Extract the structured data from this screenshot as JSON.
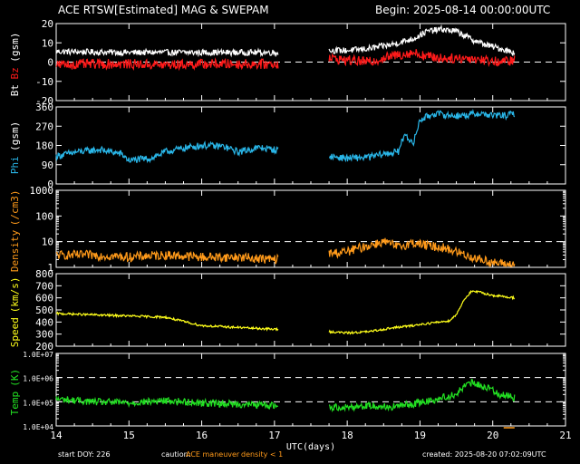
{
  "header": {
    "title": "ACE RTSW[Estimated] MAG & SWEPAM",
    "begin": "Begin: 2025-08-14 00:00:00UTC"
  },
  "footer": {
    "start_doy": "start DOY: 226",
    "caution_label": "caution:",
    "caution_maneuver": "ACE maneuver",
    "caution_density": "density < 1",
    "created": "created: 2025-08-20 07:02:09UTC"
  },
  "colors": {
    "background": "#000000",
    "frame": "#ffffff",
    "bt": "#ffffff",
    "bz": "#ff1a1a",
    "phi": "#29b6e8",
    "density": "#ff9a1a",
    "speed": "#ffff1a",
    "temp": "#22e022",
    "maneuver": "#ff9a1a"
  },
  "chart_data": {
    "type": "line",
    "title": "ACE RTSW[Estimated] MAG & SWEPAM",
    "xlabel": "UTC(days)",
    "xlim": [
      14,
      21
    ],
    "x_ticks": [
      "14",
      "15",
      "16",
      "17",
      "18",
      "19",
      "20",
      "21"
    ],
    "data_gap": [
      17.05,
      17.75
    ],
    "panels": [
      {
        "id": "mag",
        "ylabel_parts": [
          "Bt",
          "Bz",
          "(gsm)"
        ],
        "ylim": [
          -20,
          20
        ],
        "yticks": [
          "20",
          "10",
          "0",
          "-10",
          "-20"
        ],
        "scale": "linear",
        "dashed_lines": [
          0
        ],
        "series": [
          {
            "name": "Bt",
            "x": [
              14.0,
              14.5,
              15.0,
              15.5,
              16.0,
              16.5,
              17.0,
              17.75,
              18.0,
              18.3,
              18.6,
              18.9,
              19.1,
              19.3,
              19.5,
              19.7,
              19.9,
              20.1,
              20.3
            ],
            "values": [
              5.5,
              5.2,
              5.0,
              5.0,
              5.0,
              5.0,
              5.0,
              6,
              6,
              7,
              9,
              12,
              16,
              17,
              16,
              12,
              9,
              7,
              5
            ]
          },
          {
            "name": "Bz",
            "x": [
              14.0,
              14.5,
              15.0,
              15.5,
              16.0,
              16.5,
              17.0,
              17.75,
              18.0,
              18.3,
              18.6,
              18.9,
              19.1,
              19.3,
              19.5,
              19.7,
              19.9,
              20.1,
              20.3
            ],
            "values": [
              -1.5,
              -1.0,
              -1.0,
              -1.5,
              -1.0,
              -1.0,
              -1.0,
              2,
              1,
              0,
              3,
              5,
              3,
              2,
              2,
              2,
              1,
              0,
              1
            ]
          }
        ]
      },
      {
        "id": "phi",
        "ylabel_parts": [
          "Phi",
          "(gsm)"
        ],
        "ylim": [
          0,
          360
        ],
        "yticks": [
          "360",
          "270",
          "180",
          "90",
          "0"
        ],
        "scale": "linear",
        "dashed_lines": [],
        "series": [
          {
            "name": "Phi",
            "x": [
              14.0,
              14.3,
              14.6,
              14.9,
              15.0,
              15.3,
              15.5,
              15.8,
              16.0,
              16.3,
              16.5,
              16.8,
              17.0,
              17.75,
              18.0,
              18.3,
              18.5,
              18.7,
              18.8,
              18.9,
              19.0,
              19.2,
              19.4,
              19.6,
              19.8,
              20.0,
              20.2,
              20.3
            ],
            "values": [
              130,
              150,
              160,
              140,
              110,
              120,
              150,
              170,
              180,
              175,
              150,
              170,
              160,
              130,
              120,
              125,
              140,
              150,
              240,
              180,
              300,
              330,
              320,
              320,
              330,
              320,
              320,
              330
            ]
          }
        ]
      },
      {
        "id": "density",
        "ylabel_parts": [
          "Density",
          "(/cm3)"
        ],
        "ylim": [
          1,
          1000
        ],
        "yticks": [
          "1000",
          "100",
          "10",
          "1"
        ],
        "scale": "log",
        "dashed_lines": [
          10
        ],
        "series": [
          {
            "name": "Density",
            "x": [
              14.0,
              14.5,
              15.0,
              15.5,
              16.0,
              16.5,
              17.0,
              17.75,
              18.0,
              18.3,
              18.5,
              18.7,
              18.9,
              19.1,
              19.3,
              19.5,
              19.7,
              20.0,
              20.3
            ],
            "values": [
              3,
              3,
              2.5,
              3,
              2.5,
              2.5,
              2,
              3.5,
              4,
              7,
              10,
              6,
              9,
              7,
              6,
              4,
              2.5,
              1.5,
              1.2
            ]
          }
        ]
      },
      {
        "id": "speed",
        "ylabel_parts": [
          "Speed",
          "(km/s)"
        ],
        "ylim": [
          200,
          800
        ],
        "yticks": [
          "800",
          "700",
          "600",
          "500",
          "400",
          "300",
          "200"
        ],
        "scale": "linear",
        "dashed_lines": [],
        "series": [
          {
            "name": "Speed",
            "x": [
              14.0,
              14.5,
              15.0,
              15.5,
              16.0,
              16.5,
              17.0,
              17.75,
              18.0,
              18.3,
              18.6,
              18.9,
              19.0,
              19.2,
              19.4,
              19.5,
              19.6,
              19.7,
              19.8,
              20.0,
              20.3
            ],
            "values": [
              470,
              460,
              450,
              440,
              370,
              355,
              340,
              320,
              310,
              320,
              350,
              370,
              380,
              395,
              410,
              460,
              580,
              650,
              650,
              620,
              600
            ]
          }
        ]
      },
      {
        "id": "temp",
        "ylabel_parts": [
          "Temp",
          "(K)"
        ],
        "ylim": [
          10000,
          10000000
        ],
        "yticks": [
          "1.0E+07",
          "1.0E+06",
          "1.0E+05",
          "1.0E+04"
        ],
        "scale": "log",
        "dashed_lines": [
          1000000,
          100000
        ],
        "series": [
          {
            "name": "Temp",
            "x": [
              14.0,
              14.5,
              15.0,
              15.5,
              16.0,
              16.5,
              17.0,
              17.75,
              18.0,
              18.3,
              18.6,
              18.9,
              19.2,
              19.5,
              19.7,
              19.9,
              20.1,
              20.3
            ],
            "values": [
              130000,
              100000,
              90000,
              110000,
              90000,
              80000,
              70000,
              60000,
              60000,
              70000,
              60000,
              80000,
              120000,
              200000,
              600000,
              400000,
              200000,
              150000
            ]
          }
        ]
      }
    ]
  }
}
